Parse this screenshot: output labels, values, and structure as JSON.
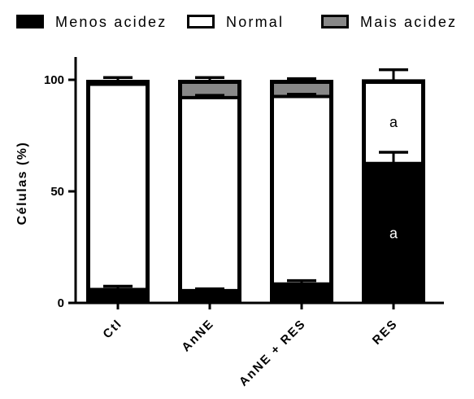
{
  "chart_data": {
    "type": "bar",
    "stacked": true,
    "title": "",
    "xlabel": "",
    "ylabel": "Células (%)",
    "ylim": [
      0,
      110
    ],
    "yticks": [
      "0",
      "50",
      "100"
    ],
    "legend_position": "top",
    "categories": [
      "Ctl",
      "AnNE",
      "AnNE + RES",
      "RES"
    ],
    "series": [
      {
        "name": "Menos acidez",
        "color": "#000000",
        "values": [
          6,
          5.5,
          8.5,
          62.5
        ],
        "errors": [
          1.5,
          0.8,
          1.5,
          5
        ]
      },
      {
        "name": "Normal",
        "color": "#ffffff",
        "values": [
          92,
          86.5,
          84,
          37
        ],
        "errors": [
          1,
          1,
          1,
          0
        ]
      },
      {
        "name": "Mais acidez",
        "color": "#888888",
        "values": [
          2,
          8,
          7.5,
          0.5
        ],
        "errors": [
          1,
          1,
          0.5,
          4.5
        ]
      }
    ],
    "annotations": [
      {
        "category": "RES",
        "series": "Normal",
        "text": "a",
        "color": "#000000"
      },
      {
        "category": "RES",
        "series": "Menos acidez",
        "text": "a",
        "color": "#ffffff"
      }
    ]
  }
}
